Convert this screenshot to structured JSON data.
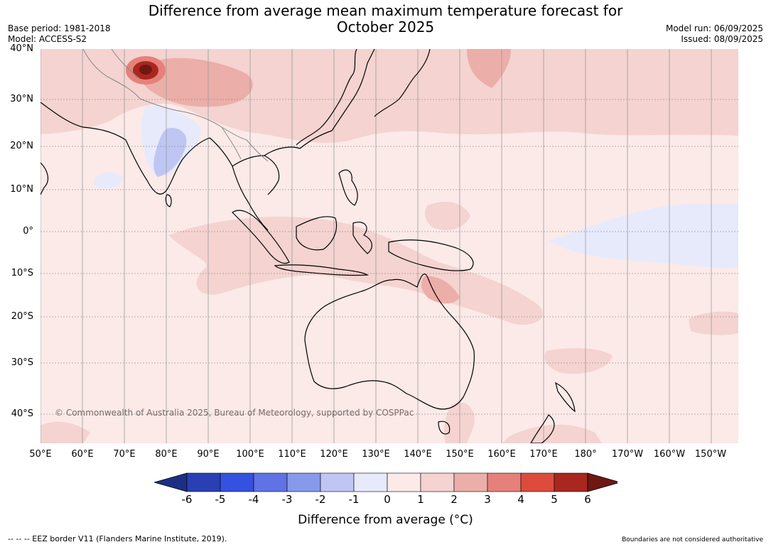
{
  "title_line1": "Difference from average mean maximum temperature forecast for",
  "title_line2": "October 2025",
  "meta_left": {
    "base_period": "Base period: 1981-2018",
    "model": "Model: ACCESS-S2"
  },
  "meta_right": {
    "model_run": "Model run: 06/09/2025",
    "issued": "Issued: 08/09/2025"
  },
  "latitude_labels": [
    "40°N",
    "30°N",
    "20°N",
    "10°N",
    "0°",
    "10°S",
    "20°S",
    "30°S",
    "40°S"
  ],
  "longitude_labels": [
    "50°E",
    "60°E",
    "70°E",
    "80°E",
    "90°E",
    "100°E",
    "110°E",
    "120°E",
    "130°E",
    "140°E",
    "150°E",
    "160°E",
    "170°E",
    "180°",
    "170°W",
    "160°W",
    "150°W"
  ],
  "copyright": "© Commonwealth of Australia 2025, Bureau of Meteorology, supported by COSPPac",
  "colorbar": {
    "ticks": [
      "-6",
      "-5",
      "-4",
      "-3",
      "-2",
      "-1",
      "0",
      "1",
      "2",
      "3",
      "4",
      "5",
      "6"
    ],
    "colors": [
      "#1c2f84",
      "#2a3fb4",
      "#3551e0",
      "#5f73e6",
      "#8799ea",
      "#bfc6f3",
      "#e7eafb",
      "#fbeae8",
      "#f4d3d0",
      "#ecaea8",
      "#e5817a",
      "#dd4b3d",
      "#a8271f",
      "#6f1713"
    ],
    "label": "Difference from average (°C)"
  },
  "footer_left": "--  --  -- EEZ border V11 (Flanders Marine Institute, 2019).",
  "footer_right": "Boundaries are not considered authoritative"
}
